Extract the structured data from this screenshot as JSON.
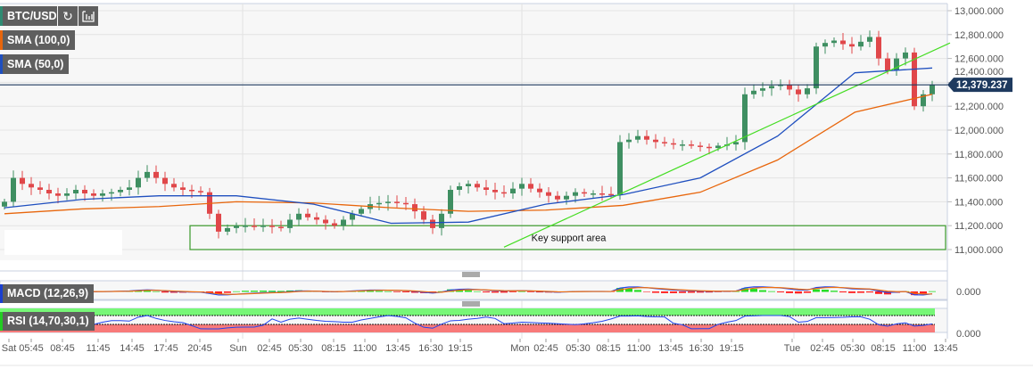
{
  "toolbar": {
    "symbol": "BTC/USD",
    "symbol_color": "#2e8b72",
    "refresh_icon": "refresh-icon",
    "indicators_icon": "chart-settings-icon"
  },
  "legend": [
    {
      "label": "SMA (100,0)",
      "color": "#e8660c"
    },
    {
      "label": "SMA (50,0)",
      "color": "#1f4fbf"
    }
  ],
  "indicators": {
    "macd": {
      "label": "MACD (12,26,9)",
      "zero_label": "0.000",
      "color": "#1a3fd0"
    },
    "rsi": {
      "label": "RSI (14,70,30,1)",
      "zero_label": "0.000",
      "color": "#22cc22"
    }
  },
  "chart_data": {
    "type": "candlestick",
    "ylim": [
      10900000,
      13050000
    ],
    "y_ticks": [
      "13,000.000",
      "12,800.000",
      "12,600.000",
      "12,400.000",
      "12,200.000",
      "12,000.000",
      "11,800.000",
      "11,600.000",
      "11,400.000",
      "11,200.000",
      "11,000.000"
    ],
    "y_tick_values": [
      13000,
      12800,
      12600,
      12400,
      12200,
      12000,
      11800,
      11600,
      11400,
      11200,
      11000
    ],
    "price_ylim": [
      10900,
      13050
    ],
    "current_price": {
      "value": 12379.237,
      "label": "12,379.237",
      "color": "#1e3a5f"
    },
    "closes": [
      11400,
      11600,
      11550,
      11520,
      11500,
      11470,
      11450,
      11470,
      11500,
      11470,
      11450,
      11470,
      11480,
      11500,
      11520,
      11600,
      11650,
      11600,
      11550,
      11520,
      11500,
      11490,
      11480,
      11300,
      11150,
      11180,
      11200,
      11200,
      11190,
      11200,
      11190,
      11180,
      11250,
      11300,
      11270,
      11250,
      11220,
      11200,
      11250,
      11300,
      11340,
      11380,
      11390,
      11400,
      11390,
      11380,
      11320,
      11250,
      11180,
      11300,
      11500,
      11530,
      11550,
      11520,
      11500,
      11480,
      11470,
      11510,
      11550,
      11510,
      11480,
      11450,
      11420,
      11450,
      11480,
      11470,
      11470,
      11465,
      11460,
      11900,
      11920,
      11950,
      11920,
      11900,
      11890,
      11880,
      11880,
      11870,
      11860,
      11850,
      11870,
      11880,
      11900,
      12300,
      12330,
      12350,
      12370,
      12380,
      12340,
      12300,
      12350,
      12700,
      12730,
      12750,
      12720,
      12700,
      12740,
      12780,
      12600,
      12500,
      12600,
      12650,
      12200,
      12300,
      12379
    ],
    "sma100_every10": [
      11300,
      11330,
      11350,
      11380,
      11400,
      11370,
      11350,
      11320,
      11300,
      11320,
      11350
    ],
    "sma100_tail": [
      11400,
      11550,
      11800,
      12000,
      12200,
      12300
    ],
    "sma50": [
      11350,
      11420,
      11450,
      11450,
      11380,
      11220,
      11230,
      11380,
      11460,
      11600,
      11950,
      12480,
      12520
    ],
    "sma100": [
      11300,
      11340,
      11360,
      11400,
      11390,
      11350,
      11320,
      11330,
      11370,
      11480,
      11750,
      12150,
      12300
    ],
    "trendline": {
      "from": {
        "index": 56,
        "price": 11020
      },
      "to": {
        "index": 106,
        "price": 12730
      },
      "color": "#44dd22"
    },
    "support_zone": {
      "from_index": 21,
      "to_index": 106,
      "low": 11000,
      "high": 11200,
      "label": "Key support area",
      "color": "#3a9a2a"
    },
    "x_ticks": [
      {
        "label": "Sat",
        "index": 0
      },
      {
        "label": "05:45",
        "index": 3.5
      },
      {
        "label": "08:45",
        "index": 7
      },
      {
        "label": "11:45",
        "index": 11
      },
      {
        "label": "14:45",
        "index": 14.8
      },
      {
        "label": "17:45",
        "index": 18.6
      },
      {
        "label": "20:45",
        "index": 22.4
      },
      {
        "label": "Sun",
        "index": 26.7
      },
      {
        "label": "02:45",
        "index": 30.2
      },
      {
        "label": "05:30",
        "index": 33.7
      },
      {
        "label": "08:15",
        "index": 37.4
      },
      {
        "label": "11:00",
        "index": 40.9
      },
      {
        "label": "13:45",
        "index": 44.6
      },
      {
        "label": "16:30",
        "index": 48.3
      },
      {
        "label": "19:15",
        "index": 51.6
      },
      {
        "label": "Mon",
        "index": 58.3
      },
      {
        "label": "02:45",
        "index": 61.2
      },
      {
        "label": "05:30",
        "index": 64.8
      },
      {
        "label": "08:15",
        "index": 68.2
      },
      {
        "label": "11:00",
        "index": 71.6
      },
      {
        "label": "13:45",
        "index": 75.2
      },
      {
        "label": "16:30",
        "index": 78.6
      },
      {
        "label": "19:15",
        "index": 82
      },
      {
        "label": "Tue",
        "index": 88.8
      },
      {
        "label": "02:45",
        "index": 92.2
      },
      {
        "label": "05:30",
        "index": 95.6
      },
      {
        "label": "08:15",
        "index": 99
      },
      {
        "label": "11:00",
        "index": 102.5
      },
      {
        "label": "13:45",
        "index": 106
      }
    ],
    "day_separators": [
      26.7,
      58.0,
      88.5
    ],
    "up_color": "#3f8f62",
    "down_color": "#e0474a"
  }
}
